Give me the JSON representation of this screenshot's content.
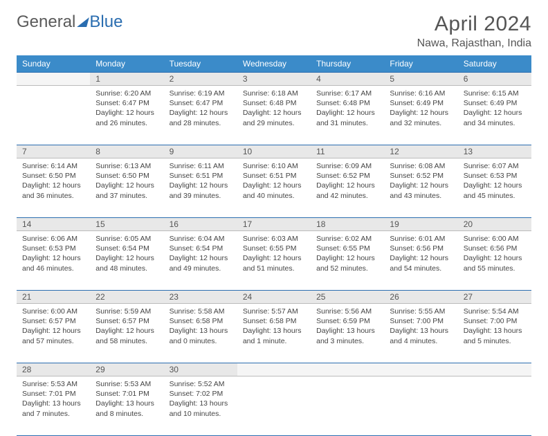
{
  "brand": {
    "part1": "General",
    "part2": "Blue"
  },
  "title": "April 2024",
  "location": "Nawa, Rajasthan, India",
  "styling": {
    "header_bg": "#3b8bc9",
    "header_text": "#ffffff",
    "daynum_bg": "#e8e8e8",
    "border_color": "#2a6db0",
    "body_text": "#444444",
    "title_fontsize": 30,
    "location_fontsize": 16,
    "dayhdr_fontsize": 12,
    "cell_fontsize": 10.5
  },
  "day_headers": [
    "Sunday",
    "Monday",
    "Tuesday",
    "Wednesday",
    "Thursday",
    "Friday",
    "Saturday"
  ],
  "weeks": [
    {
      "nums": [
        "",
        "1",
        "2",
        "3",
        "4",
        "5",
        "6"
      ],
      "cells": [
        null,
        {
          "sr": "6:20 AM",
          "ss": "6:47 PM",
          "dh": "12",
          "dm": "26"
        },
        {
          "sr": "6:19 AM",
          "ss": "6:47 PM",
          "dh": "12",
          "dm": "28"
        },
        {
          "sr": "6:18 AM",
          "ss": "6:48 PM",
          "dh": "12",
          "dm": "29"
        },
        {
          "sr": "6:17 AM",
          "ss": "6:48 PM",
          "dh": "12",
          "dm": "31"
        },
        {
          "sr": "6:16 AM",
          "ss": "6:49 PM",
          "dh": "12",
          "dm": "32"
        },
        {
          "sr": "6:15 AM",
          "ss": "6:49 PM",
          "dh": "12",
          "dm": "34"
        }
      ]
    },
    {
      "nums": [
        "7",
        "8",
        "9",
        "10",
        "11",
        "12",
        "13"
      ],
      "cells": [
        {
          "sr": "6:14 AM",
          "ss": "6:50 PM",
          "dh": "12",
          "dm": "36"
        },
        {
          "sr": "6:13 AM",
          "ss": "6:50 PM",
          "dh": "12",
          "dm": "37"
        },
        {
          "sr": "6:11 AM",
          "ss": "6:51 PM",
          "dh": "12",
          "dm": "39"
        },
        {
          "sr": "6:10 AM",
          "ss": "6:51 PM",
          "dh": "12",
          "dm": "40"
        },
        {
          "sr": "6:09 AM",
          "ss": "6:52 PM",
          "dh": "12",
          "dm": "42"
        },
        {
          "sr": "6:08 AM",
          "ss": "6:52 PM",
          "dh": "12",
          "dm": "43"
        },
        {
          "sr": "6:07 AM",
          "ss": "6:53 PM",
          "dh": "12",
          "dm": "45"
        }
      ]
    },
    {
      "nums": [
        "14",
        "15",
        "16",
        "17",
        "18",
        "19",
        "20"
      ],
      "cells": [
        {
          "sr": "6:06 AM",
          "ss": "6:53 PM",
          "dh": "12",
          "dm": "46"
        },
        {
          "sr": "6:05 AM",
          "ss": "6:54 PM",
          "dh": "12",
          "dm": "48"
        },
        {
          "sr": "6:04 AM",
          "ss": "6:54 PM",
          "dh": "12",
          "dm": "49"
        },
        {
          "sr": "6:03 AM",
          "ss": "6:55 PM",
          "dh": "12",
          "dm": "51"
        },
        {
          "sr": "6:02 AM",
          "ss": "6:55 PM",
          "dh": "12",
          "dm": "52"
        },
        {
          "sr": "6:01 AM",
          "ss": "6:56 PM",
          "dh": "12",
          "dm": "54"
        },
        {
          "sr": "6:00 AM",
          "ss": "6:56 PM",
          "dh": "12",
          "dm": "55"
        }
      ]
    },
    {
      "nums": [
        "21",
        "22",
        "23",
        "24",
        "25",
        "26",
        "27"
      ],
      "cells": [
        {
          "sr": "6:00 AM",
          "ss": "6:57 PM",
          "dh": "12",
          "dm": "57"
        },
        {
          "sr": "5:59 AM",
          "ss": "6:57 PM",
          "dh": "12",
          "dm": "58"
        },
        {
          "sr": "5:58 AM",
          "ss": "6:58 PM",
          "dh": "13",
          "dm": "0"
        },
        {
          "sr": "5:57 AM",
          "ss": "6:58 PM",
          "dh": "13",
          "dm": "1",
          "single": true
        },
        {
          "sr": "5:56 AM",
          "ss": "6:59 PM",
          "dh": "13",
          "dm": "3"
        },
        {
          "sr": "5:55 AM",
          "ss": "7:00 PM",
          "dh": "13",
          "dm": "4"
        },
        {
          "sr": "5:54 AM",
          "ss": "7:00 PM",
          "dh": "13",
          "dm": "5"
        }
      ]
    },
    {
      "nums": [
        "28",
        "29",
        "30",
        "",
        "",
        "",
        ""
      ],
      "cells": [
        {
          "sr": "5:53 AM",
          "ss": "7:01 PM",
          "dh": "13",
          "dm": "7"
        },
        {
          "sr": "5:53 AM",
          "ss": "7:01 PM",
          "dh": "13",
          "dm": "8"
        },
        {
          "sr": "5:52 AM",
          "ss": "7:02 PM",
          "dh": "13",
          "dm": "10"
        },
        null,
        null,
        null,
        null
      ]
    }
  ]
}
